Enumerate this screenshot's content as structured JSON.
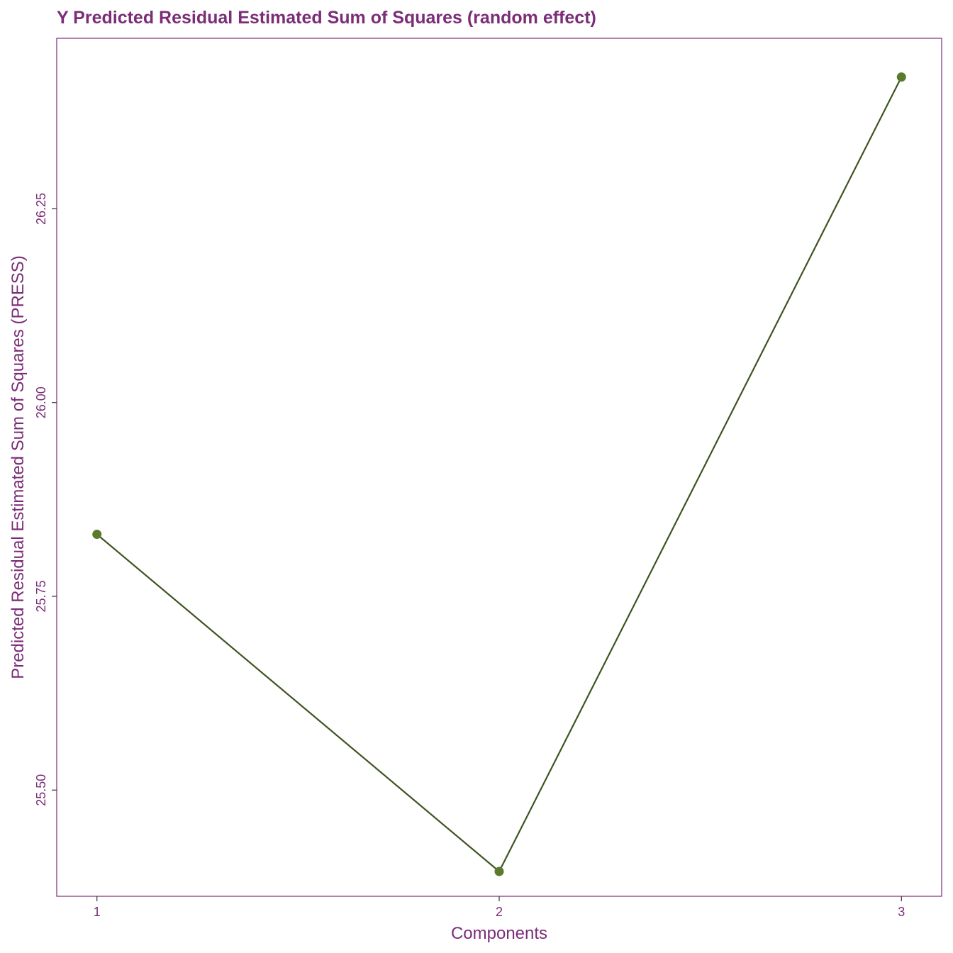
{
  "chart_data": {
    "type": "line",
    "title": "Y Predicted Residual Estimated Sum of Squares (random effect)",
    "xlabel": "Components",
    "ylabel": "Predicted Residual Estimated Sum of Squares (PRESS)",
    "x": [
      1,
      2,
      3
    ],
    "x_tick_labels": [
      "1",
      "2",
      "3"
    ],
    "series": [
      {
        "values": [
          25.83,
          25.395,
          26.42
        ]
      }
    ],
    "y_ticks": [
      25.5,
      25.75,
      26.0,
      26.25
    ],
    "y_tick_labels": [
      "25.50",
      "25.75",
      "26.00",
      "26.25"
    ],
    "xlim": [
      0.9,
      3.1
    ],
    "ylim": [
      25.363,
      26.47
    ],
    "grid": false,
    "legend": "none",
    "colors": {
      "text": "#7b2d77",
      "frame": "#7b2d77",
      "line": "#3e5420",
      "marker": "#5a7a2c",
      "tick": "#333333"
    }
  }
}
